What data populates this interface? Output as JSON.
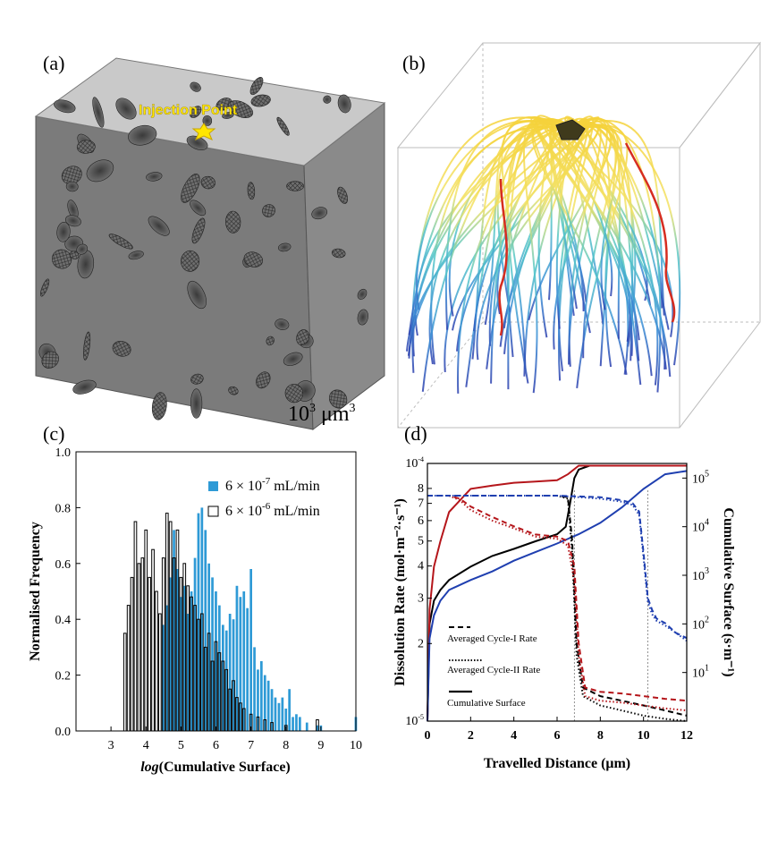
{
  "panels": {
    "a": {
      "label": "(a)",
      "annotation": "Injection Point",
      "scale_base": "10",
      "scale_exp": "3",
      "scale_unit": "μm",
      "scale_unit_exp": "3"
    },
    "b": {
      "label": "(b)"
    },
    "c": {
      "label": "(c)"
    },
    "d": {
      "label": "(d)"
    }
  },
  "chart_data": [
    {
      "panel": "c",
      "type": "bar",
      "xlabel_italic": "log",
      "xlabel_rest": "(Cumulative Surface)",
      "ylabel": "Normalised Frequency",
      "xlim": [
        2,
        10
      ],
      "ylim": [
        0,
        1.0
      ],
      "xticks": [
        "3",
        "4",
        "5",
        "6",
        "7",
        "8",
        "9",
        "10"
      ],
      "yticks": [
        "0.0",
        "0.2",
        "0.4",
        "0.6",
        "0.8",
        "1.0"
      ],
      "legend_position": "top-right",
      "series": [
        {
          "name": "6 × 10-7 mL/min",
          "name_base": "6 × 10",
          "name_exp": "-7",
          "name_unit": " mL/min",
          "color": "#2e9ad6",
          "style": "filled",
          "x": [
            4.5,
            4.6,
            4.7,
            4.8,
            4.9,
            5.0,
            5.1,
            5.2,
            5.3,
            5.4,
            5.5,
            5.6,
            5.7,
            5.8,
            5.9,
            6.0,
            6.1,
            6.2,
            6.3,
            6.4,
            6.5,
            6.6,
            6.7,
            6.8,
            6.9,
            7.0,
            7.1,
            7.2,
            7.3,
            7.4,
            7.5,
            7.6,
            7.7,
            7.8,
            7.9,
            8.0,
            8.1,
            8.2,
            8.3,
            8.4,
            8.6,
            8.9,
            9.0,
            10.0
          ],
          "values": [
            0.38,
            0.45,
            0.55,
            0.72,
            0.58,
            0.48,
            0.52,
            0.42,
            0.5,
            0.62,
            0.78,
            0.8,
            0.72,
            0.6,
            0.55,
            0.5,
            0.45,
            0.38,
            0.36,
            0.42,
            0.4,
            0.52,
            0.48,
            0.5,
            0.44,
            0.58,
            0.3,
            0.22,
            0.25,
            0.2,
            0.18,
            0.15,
            0.12,
            0.1,
            0.12,
            0.08,
            0.15,
            0.05,
            0.06,
            0.05,
            0.03,
            0.02,
            0.02,
            0.05
          ]
        },
        {
          "name": "6 × 10-6 mL/min",
          "name_base": "6 × 10",
          "name_exp": "-6",
          "name_unit": " mL/min",
          "color": "#000000",
          "style": "outline",
          "x": [
            3.4,
            3.5,
            3.6,
            3.7,
            3.8,
            3.9,
            4.0,
            4.1,
            4.2,
            4.3,
            4.4,
            4.5,
            4.6,
            4.7,
            4.8,
            4.9,
            5.0,
            5.1,
            5.2,
            5.3,
            5.4,
            5.5,
            5.6,
            5.7,
            5.8,
            5.9,
            6.0,
            6.1,
            6.2,
            6.3,
            6.4,
            6.5,
            6.6,
            6.7,
            6.8,
            7.0,
            7.2,
            7.4,
            7.6,
            8.0,
            8.9
          ],
          "values": [
            0.35,
            0.45,
            0.55,
            0.75,
            0.6,
            0.62,
            0.72,
            0.55,
            0.65,
            0.5,
            0.42,
            0.62,
            0.78,
            0.75,
            0.62,
            0.72,
            0.55,
            0.6,
            0.52,
            0.48,
            0.45,
            0.4,
            0.42,
            0.3,
            0.35,
            0.25,
            0.32,
            0.28,
            0.25,
            0.22,
            0.15,
            0.18,
            0.12,
            0.1,
            0.08,
            0.06,
            0.05,
            0.04,
            0.03,
            0.02,
            0.04
          ]
        }
      ]
    },
    {
      "panel": "d",
      "type": "line",
      "xlabel": "Travelled Distance (μm)",
      "ylabel": "Dissolution Rate (mol·m⁻²·s⁻¹)",
      "ylabel_right": "Cumulative Surface (s·m⁻¹)",
      "xlim": [
        0,
        12
      ],
      "ylim_left": [
        1e-05,
        0.0001
      ],
      "ylim_right": [
        1,
        200000
      ],
      "yscale": "log",
      "xticks": [
        "0",
        "2",
        "4",
        "6",
        "8",
        "10",
        "12"
      ],
      "yticks_left": [
        "10-5",
        "2",
        "3",
        "4",
        "5",
        "6",
        "7",
        "8",
        "10-4"
      ],
      "yticks_right": [
        "101",
        "102",
        "103",
        "104",
        "105"
      ],
      "legend_position": "bottom-left",
      "legend": [
        {
          "label": "Averaged Cycle-I Rate",
          "style": "dashed"
        },
        {
          "label": "Averaged Cycle-II Rate",
          "style": "dotted"
        },
        {
          "label": "Cumulative Surface",
          "style": "solid"
        }
      ],
      "vertical_markers": [
        6.8,
        10.2
      ],
      "series": [
        {
          "group": "cumulative",
          "color": "#000000",
          "style": "solid",
          "x": [
            0,
            0.1,
            0.3,
            0.6,
            1,
            2,
            3,
            4,
            5,
            6,
            6.4,
            6.6,
            6.8,
            7,
            7.5,
            8,
            9,
            10,
            11,
            12
          ],
          "y": [
            1,
            100,
            300,
            500,
            800,
            1500,
            2500,
            3500,
            5000,
            7000,
            10000,
            30000,
            100000,
            150000,
            180000,
            180000,
            180000,
            180000,
            180000,
            180000
          ]
        },
        {
          "group": "cumulative",
          "color": "#b5161b",
          "style": "solid",
          "x": [
            0,
            0.1,
            0.3,
            0.6,
            1,
            2,
            3,
            4,
            5,
            6,
            6.5,
            7,
            8,
            9,
            10,
            11,
            12
          ],
          "y": [
            1,
            200,
            1500,
            5000,
            20000,
            60000,
            70000,
            80000,
            85000,
            90000,
            120000,
            180000,
            180000,
            180000,
            180000,
            180000,
            180000
          ]
        },
        {
          "group": "cumulative",
          "color": "#1f3fb0",
          "style": "solid",
          "x": [
            0,
            0.1,
            0.3,
            0.6,
            1,
            2,
            3,
            4,
            5,
            6,
            7,
            8,
            9,
            10,
            11,
            12
          ],
          "y": [
            1,
            50,
            150,
            300,
            500,
            800,
            1200,
            2000,
            3000,
            4500,
            7000,
            12000,
            25000,
            60000,
            120000,
            140000
          ]
        },
        {
          "group": "rate-I",
          "color": "#000000",
          "style": "dashed",
          "x": [
            0,
            1,
            2,
            3,
            4,
            5,
            6,
            6.5,
            6.7,
            6.9,
            7.2,
            8,
            9,
            10,
            11,
            12
          ],
          "y": [
            7.5e-05,
            7.5e-05,
            7.5e-05,
            7.5e-05,
            7.5e-05,
            7.5e-05,
            7.5e-05,
            7.4e-05,
            5e-05,
            2e-05,
            1.35e-05,
            1.25e-05,
            1.2e-05,
            1.15e-05,
            1.1e-05,
            1.05e-05
          ]
        },
        {
          "group": "rate-II",
          "color": "#000000",
          "style": "dotted",
          "x": [
            0,
            1,
            2,
            3,
            4,
            5,
            6,
            6.5,
            6.7,
            6.9,
            7.2,
            8,
            9,
            10,
            11,
            12
          ],
          "y": [
            7.5e-05,
            7.5e-05,
            7.5e-05,
            7.5e-05,
            7.5e-05,
            7.5e-05,
            7.5e-05,
            7.3e-05,
            4.5e-05,
            1.8e-05,
            1.25e-05,
            1.15e-05,
            1.1e-05,
            1.05e-05,
            1.02e-05,
            1e-05
          ]
        },
        {
          "group": "rate-I",
          "color": "#b5161b",
          "style": "dashed",
          "x": [
            0,
            1,
            1.5,
            2,
            3,
            4,
            5,
            6,
            6.5,
            6.8,
            7,
            7.3,
            8,
            9,
            10,
            11,
            12
          ],
          "y": [
            7.5e-05,
            7.5e-05,
            7.3e-05,
            6.8e-05,
            6.2e-05,
            5.7e-05,
            5.3e-05,
            5.2e-05,
            5e-05,
            4e-05,
            2e-05,
            1.35e-05,
            1.3e-05,
            1.28e-05,
            1.25e-05,
            1.22e-05,
            1.2e-05
          ]
        },
        {
          "group": "rate-II",
          "color": "#b5161b",
          "style": "dotted",
          "x": [
            0,
            1,
            1.5,
            2,
            3,
            4,
            5,
            6,
            6.5,
            6.8,
            7,
            7.3,
            8,
            9,
            10,
            11,
            12
          ],
          "y": [
            7.5e-05,
            7.5e-05,
            7.2e-05,
            6.6e-05,
            6e-05,
            5.6e-05,
            5.2e-05,
            5.1e-05,
            4.8e-05,
            3.5e-05,
            1.8e-05,
            1.25e-05,
            1.2e-05,
            1.18e-05,
            1.15e-05,
            1.12e-05,
            1.1e-05
          ]
        },
        {
          "group": "rate-I",
          "color": "#1f3fb0",
          "style": "dashed",
          "x": [
            0,
            2,
            4,
            6,
            8,
            9,
            9.5,
            9.8,
            10,
            10.2,
            10.4,
            10.6,
            11,
            11.5,
            12
          ],
          "y": [
            7.5e-05,
            7.5e-05,
            7.5e-05,
            7.5e-05,
            7.4e-05,
            7.2e-05,
            7e-05,
            6.5e-05,
            4.5e-05,
            3e-05,
            2.7e-05,
            2.5e-05,
            2.4e-05,
            2.2e-05,
            2.1e-05
          ]
        },
        {
          "group": "rate-II",
          "color": "#1f3fb0",
          "style": "dotted",
          "x": [
            0,
            2,
            4,
            6,
            8,
            9,
            9.5,
            9.8,
            10,
            10.2,
            10.4,
            10.6,
            11,
            11.5,
            12
          ],
          "y": [
            7.5e-05,
            7.5e-05,
            7.5e-05,
            7.5e-05,
            7.3e-05,
            7.1e-05,
            6.9e-05,
            6.3e-05,
            4.3e-05,
            2.9e-05,
            2.6e-05,
            2.45e-05,
            2.35e-05,
            2.2e-05,
            2.05e-05
          ]
        }
      ]
    }
  ]
}
